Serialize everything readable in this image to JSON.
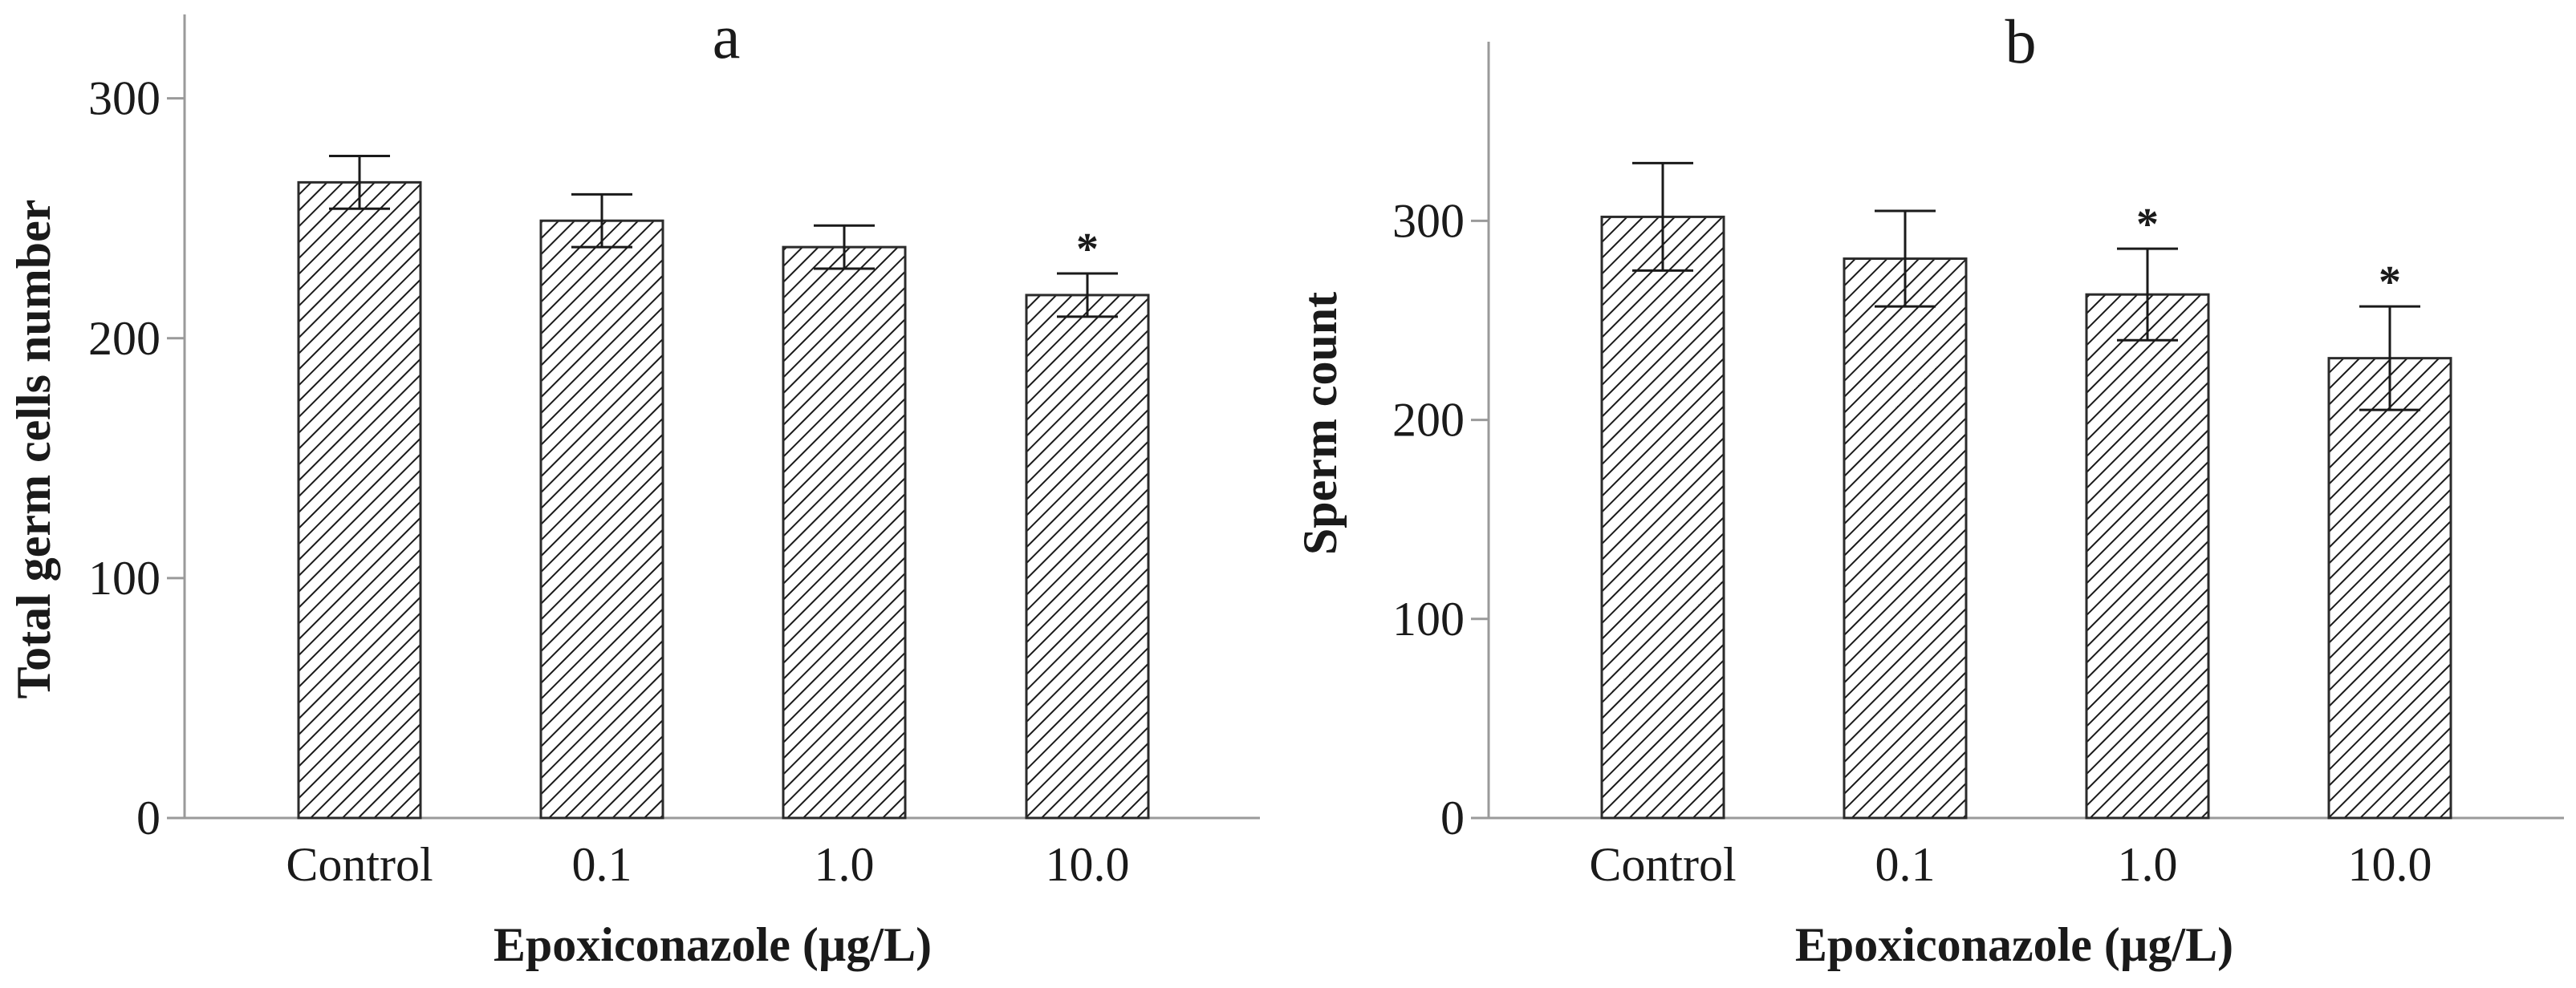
{
  "chart_data": [
    {
      "type": "bar",
      "title": "a",
      "categories": [
        "Control",
        "0.1",
        "1.0",
        "10.0"
      ],
      "values": [
        265,
        249,
        238,
        218
      ],
      "error": [
        11,
        11,
        9,
        9
      ],
      "significant": [
        false,
        false,
        false,
        true
      ],
      "significance_marker": "*",
      "xlabel": "Epoxiconazole (µg/L)",
      "ylabel": "Total germ cells number",
      "ylim": [
        0,
        335
      ],
      "yticks": [
        0,
        100,
        200,
        300
      ],
      "fill": "hatched"
    },
    {
      "type": "bar",
      "title": "b",
      "categories": [
        "Control",
        "0.1",
        "1.0",
        "10.0"
      ],
      "values": [
        302,
        281,
        263,
        231
      ],
      "error": [
        27,
        24,
        23,
        26
      ],
      "significant": [
        false,
        false,
        true,
        true
      ],
      "significance_marker": "*",
      "xlabel": "Epoxiconazole (µg/L)",
      "ylabel": "Sperm count",
      "ylim": [
        0,
        390
      ],
      "yticks": [
        0,
        100,
        200,
        300
      ],
      "fill": "hatched"
    }
  ],
  "colors": {
    "axis": "#9a9a9a",
    "bar_outline": "#2b2b2b",
    "hatch": "#1a1a1a",
    "bar_bg": "#ffffff"
  }
}
